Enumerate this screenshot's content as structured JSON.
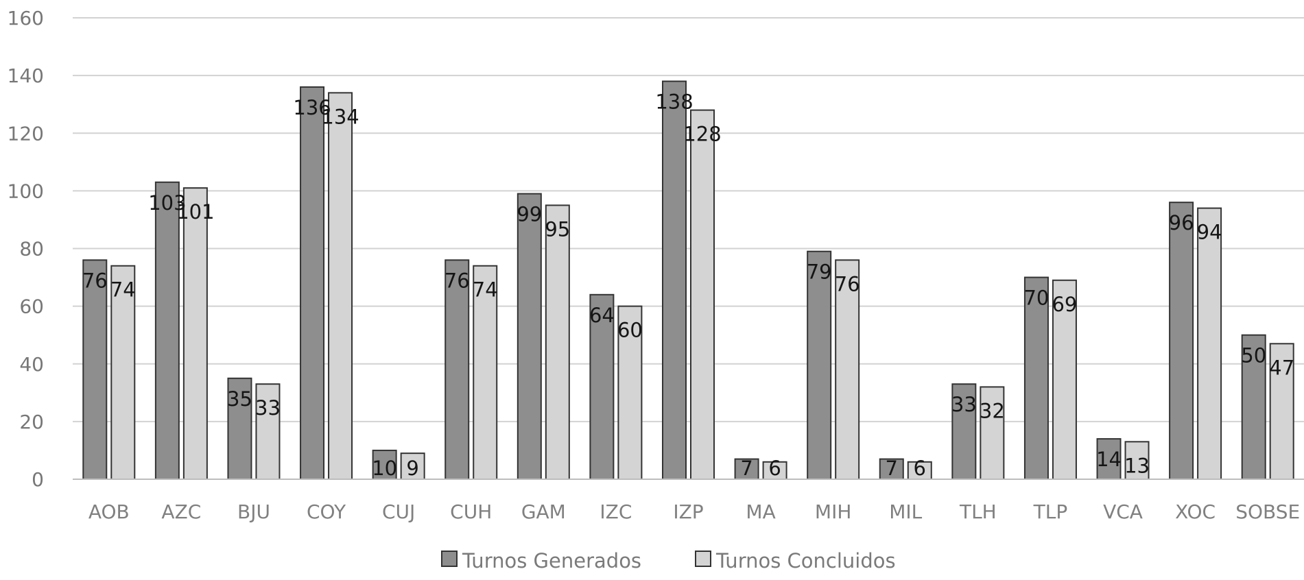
{
  "chart_data": {
    "type": "bar",
    "categories": [
      "AOB",
      "AZC",
      "BJU",
      "COY",
      "CUJ",
      "CUH",
      "GAM",
      "IZC",
      "IZP",
      "MA",
      "MIH",
      "MIL",
      "TLH",
      "TLP",
      "VCA",
      "XOC",
      "SOBSE"
    ],
    "series": [
      {
        "name": "Turnos Generados",
        "values": [
          76,
          103,
          35,
          136,
          10,
          76,
          99,
          64,
          138,
          7,
          79,
          7,
          33,
          70,
          14,
          96,
          50
        ],
        "color": "#8e8e8e"
      },
      {
        "name": "Turnos Concluidos",
        "values": [
          74,
          101,
          33,
          134,
          9,
          74,
          95,
          60,
          128,
          6,
          76,
          6,
          32,
          69,
          13,
          94,
          47
        ],
        "color": "#d4d4d4"
      }
    ],
    "y_ticks": [
      "0",
      "20",
      "40",
      "60",
      "80",
      "100",
      "120",
      "140",
      "160"
    ],
    "ylim": [
      0,
      160
    ],
    "grid": true,
    "legend_position": "bottom",
    "title": "",
    "xlabel": "",
    "ylabel": ""
  }
}
